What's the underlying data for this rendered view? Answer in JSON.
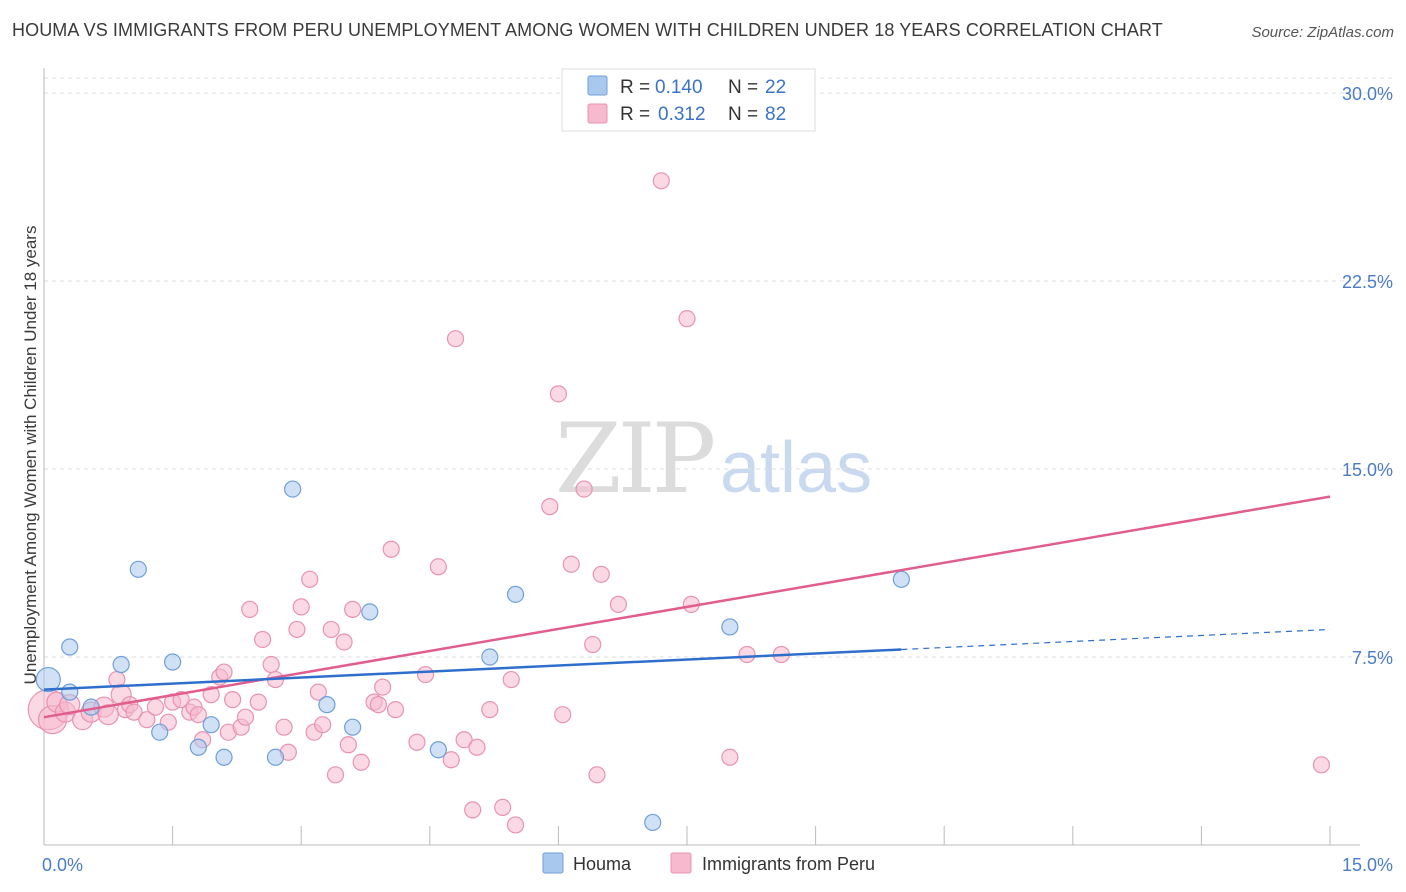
{
  "title": "HOUMA VS IMMIGRANTS FROM PERU UNEMPLOYMENT AMONG WOMEN WITH CHILDREN UNDER 18 YEARS CORRELATION CHART",
  "source": "Source: ZipAtlas.com",
  "watermark": {
    "zip": "ZIP",
    "atlas": "atlas"
  },
  "legend": {
    "r_label": "R =",
    "n_label": "N =",
    "houma": {
      "r": "0.140",
      "n": "22"
    },
    "peru": {
      "r": "0.312",
      "n": "82"
    }
  },
  "bottom_legend": {
    "houma": "Houma",
    "peru": "Immigrants from Peru"
  },
  "colors": {
    "houma_fill": "#a9c8ee",
    "houma_stroke": "#6e9fd9",
    "houma_line": "#2f6fcc",
    "peru_fill": "#f6b9cd",
    "peru_stroke": "#e893b0",
    "peru_line": "#e05d8e",
    "grid": "#dddddd",
    "tick_label": "#4a7cc8"
  },
  "chart_data": {
    "type": "scatter",
    "ylabel": "Unemployment Among Women with Children Under 18 years",
    "xlim": [
      0,
      15
    ],
    "ylim": [
      0,
      31
    ],
    "y_ticks": [
      7.5,
      15.0,
      22.5,
      30.0
    ],
    "y_tick_labels": [
      "7.5%",
      "15.0%",
      "22.5%",
      "30.0%"
    ],
    "x_tick_labels": [
      "0.0%",
      "15.0%"
    ],
    "grid": true,
    "legend_position": "top-center",
    "series": [
      {
        "name": "Houma",
        "r": 0.14,
        "n": 22,
        "points": [
          [
            0.05,
            6.6,
            12
          ],
          [
            0.3,
            6.1,
            8
          ],
          [
            0.3,
            7.9,
            8
          ],
          [
            0.55,
            5.5,
            8
          ],
          [
            0.9,
            7.2,
            8
          ],
          [
            1.1,
            11.0,
            8
          ],
          [
            1.35,
            4.5,
            8
          ],
          [
            1.5,
            7.3,
            8
          ],
          [
            1.8,
            3.9,
            8
          ],
          [
            1.95,
            4.8,
            8
          ],
          [
            2.1,
            3.5,
            8
          ],
          [
            2.7,
            3.5,
            8
          ],
          [
            2.9,
            14.2,
            8
          ],
          [
            3.3,
            5.6,
            8
          ],
          [
            3.6,
            4.7,
            8
          ],
          [
            3.8,
            9.3,
            8
          ],
          [
            4.6,
            3.8,
            8
          ],
          [
            5.2,
            7.5,
            8
          ],
          [
            5.5,
            10.0,
            8
          ],
          [
            7.1,
            0.9,
            8
          ],
          [
            8.0,
            8.7,
            8
          ],
          [
            10.0,
            10.6,
            8
          ]
        ],
        "trend": {
          "x0": 0,
          "y0": 6.2,
          "x1": 10.0,
          "y1": 7.8,
          "x_dash_end": 15.0,
          "y_dash_end": 8.6
        }
      },
      {
        "name": "Immigrants from Peru",
        "r": 0.312,
        "n": 82,
        "points": [
          [
            0.05,
            5.4,
            20
          ],
          [
            0.1,
            5.0,
            14
          ],
          [
            0.15,
            5.7,
            10
          ],
          [
            0.25,
            5.3,
            10
          ],
          [
            0.3,
            5.6,
            10
          ],
          [
            0.45,
            5.0,
            10
          ],
          [
            0.55,
            5.3,
            10
          ],
          [
            0.7,
            5.5,
            10
          ],
          [
            0.75,
            5.2,
            10
          ],
          [
            0.85,
            6.6,
            8
          ],
          [
            0.9,
            6.0,
            10
          ],
          [
            0.95,
            5.4,
            8
          ],
          [
            1.0,
            5.6,
            8
          ],
          [
            1.05,
            5.3,
            8
          ],
          [
            1.2,
            5.0,
            8
          ],
          [
            1.3,
            5.5,
            8
          ],
          [
            1.45,
            4.9,
            8
          ],
          [
            1.5,
            5.7,
            8
          ],
          [
            1.6,
            5.8,
            8
          ],
          [
            1.7,
            5.3,
            8
          ],
          [
            1.75,
            5.5,
            8
          ],
          [
            1.8,
            5.2,
            8
          ],
          [
            1.85,
            4.2,
            8
          ],
          [
            1.95,
            6.0,
            8
          ],
          [
            2.05,
            6.7,
            8
          ],
          [
            2.1,
            6.9,
            8
          ],
          [
            2.15,
            4.5,
            8
          ],
          [
            2.2,
            5.8,
            8
          ],
          [
            2.3,
            4.7,
            8
          ],
          [
            2.35,
            5.1,
            8
          ],
          [
            2.4,
            9.4,
            8
          ],
          [
            2.5,
            5.7,
            8
          ],
          [
            2.55,
            8.2,
            8
          ],
          [
            2.65,
            7.2,
            8
          ],
          [
            2.7,
            6.6,
            8
          ],
          [
            2.8,
            4.7,
            8
          ],
          [
            2.85,
            3.7,
            8
          ],
          [
            2.95,
            8.6,
            8
          ],
          [
            3.0,
            9.5,
            8
          ],
          [
            3.1,
            10.6,
            8
          ],
          [
            3.15,
            4.5,
            8
          ],
          [
            3.2,
            6.1,
            8
          ],
          [
            3.25,
            4.8,
            8
          ],
          [
            3.35,
            8.6,
            8
          ],
          [
            3.4,
            2.8,
            8
          ],
          [
            3.5,
            8.1,
            8
          ],
          [
            3.55,
            4.0,
            8
          ],
          [
            3.6,
            9.4,
            8
          ],
          [
            3.7,
            3.3,
            8
          ],
          [
            3.85,
            5.7,
            8
          ],
          [
            3.9,
            5.6,
            8
          ],
          [
            3.95,
            6.3,
            8
          ],
          [
            4.05,
            11.8,
            8
          ],
          [
            4.1,
            5.4,
            8
          ],
          [
            4.35,
            4.1,
            8
          ],
          [
            4.45,
            6.8,
            8
          ],
          [
            4.6,
            11.1,
            8
          ],
          [
            4.75,
            3.4,
            8
          ],
          [
            4.8,
            20.2,
            8
          ],
          [
            4.9,
            4.2,
            8
          ],
          [
            5.0,
            1.4,
            8
          ],
          [
            5.05,
            3.9,
            8
          ],
          [
            5.2,
            5.4,
            8
          ],
          [
            5.35,
            1.5,
            8
          ],
          [
            5.45,
            6.6,
            8
          ],
          [
            5.5,
            0.8,
            8
          ],
          [
            5.9,
            13.5,
            8
          ],
          [
            6.0,
            18.0,
            8
          ],
          [
            6.05,
            5.2,
            8
          ],
          [
            6.15,
            11.2,
            8
          ],
          [
            6.3,
            14.2,
            8
          ],
          [
            6.4,
            8.0,
            8
          ],
          [
            6.45,
            2.8,
            8
          ],
          [
            6.5,
            10.8,
            8
          ],
          [
            6.7,
            9.6,
            8
          ],
          [
            7.2,
            26.5,
            8
          ],
          [
            7.5,
            21.0,
            8
          ],
          [
            7.55,
            9.6,
            8
          ],
          [
            8.0,
            3.5,
            8
          ],
          [
            8.2,
            7.6,
            8
          ],
          [
            8.6,
            7.6,
            8
          ],
          [
            14.9,
            3.2,
            8
          ]
        ],
        "trend": {
          "x0": 0,
          "y0": 5.1,
          "x1": 15.0,
          "y1": 13.9
        }
      }
    ]
  }
}
